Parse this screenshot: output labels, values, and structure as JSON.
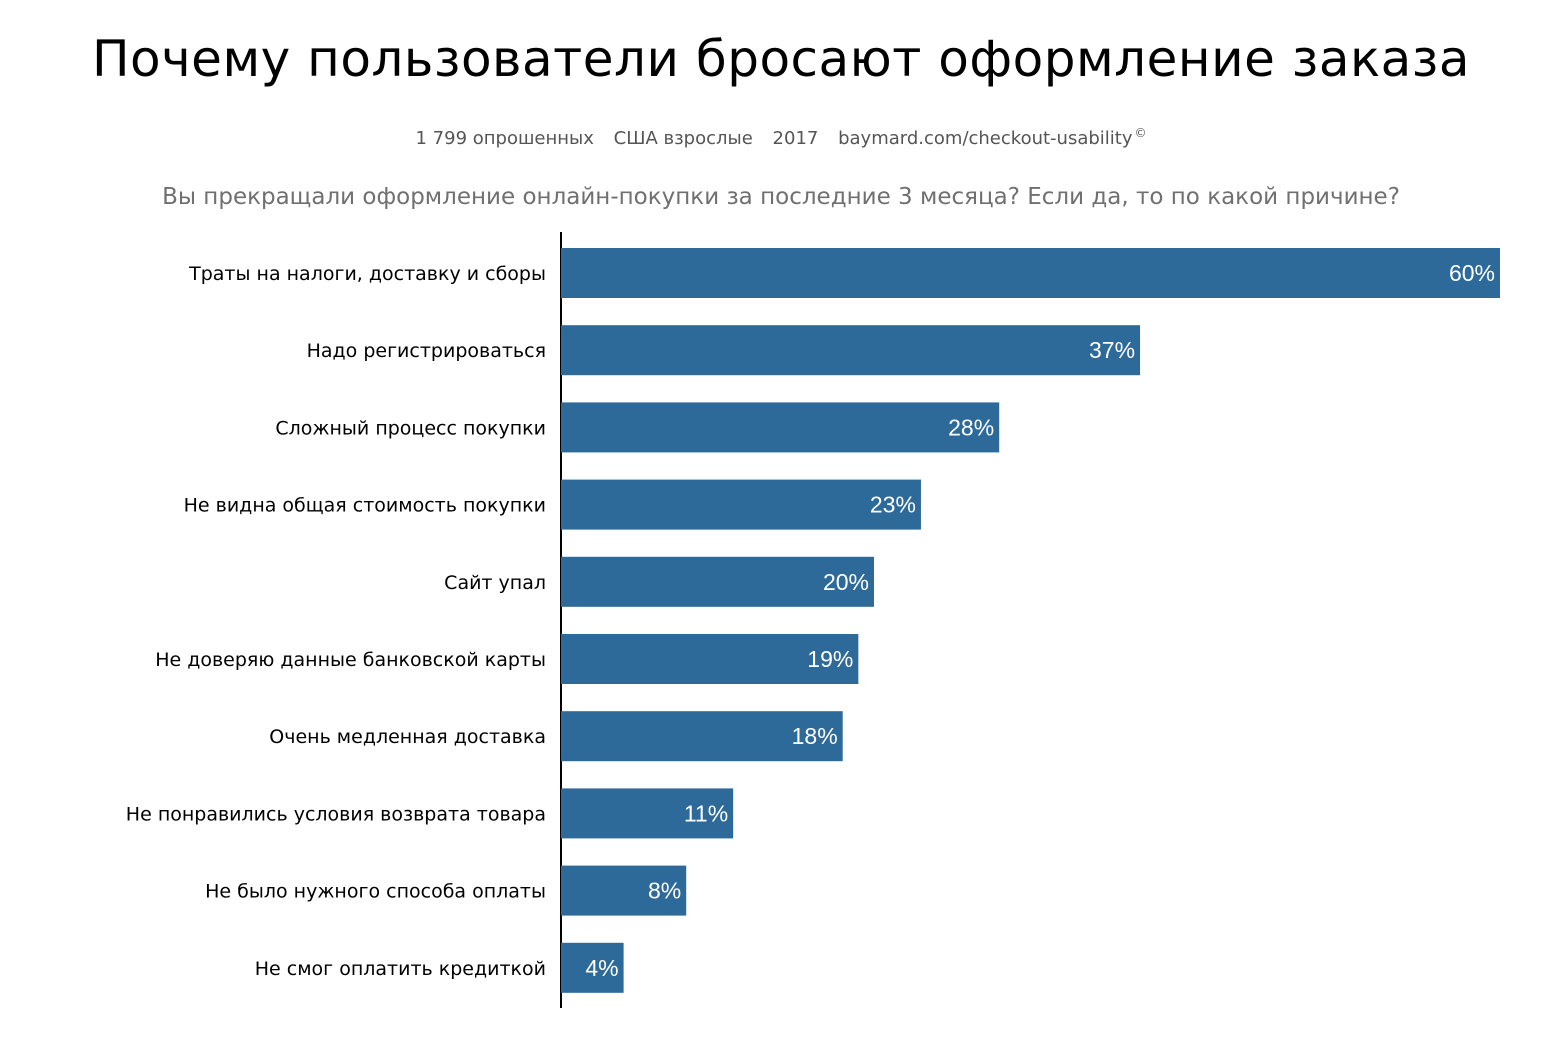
{
  "title": "Почему пользователи бросают оформление заказа",
  "meta": {
    "respondents": "1 799 опрошенных",
    "audience": "США взрослые",
    "year": "2017",
    "source": "baymard.com/checkout-usability",
    "copyright": "©"
  },
  "question": "Вы прекращали оформление онлайн-покупки за последние 3 месяца? Если да, то по какой причине?",
  "colors": {
    "bar": "#2d6999",
    "axis": "#000000",
    "value_text": "#ffffff"
  },
  "chart_data": {
    "type": "bar",
    "orientation": "horizontal",
    "categories": [
      "Траты на налоги, доставку и сборы",
      "Надо регистрироваться",
      "Сложный процесс покупки",
      "Не видна общая стоимость покупки",
      "Сайт упал",
      "Не доверяю данные банковской карты",
      "Очень медленная доставка",
      "Не понравились условия возврата товара",
      "Не было нужного способа оплаты",
      "Не смог оплатить кредиткой"
    ],
    "values": [
      60,
      37,
      28,
      23,
      20,
      19,
      18,
      11,
      8,
      4
    ],
    "value_labels": [
      "60%",
      "37%",
      "28%",
      "23%",
      "20%",
      "19%",
      "18%",
      "11%",
      "8%",
      "4%"
    ],
    "unit": "%",
    "grid": false,
    "legend": "none"
  }
}
